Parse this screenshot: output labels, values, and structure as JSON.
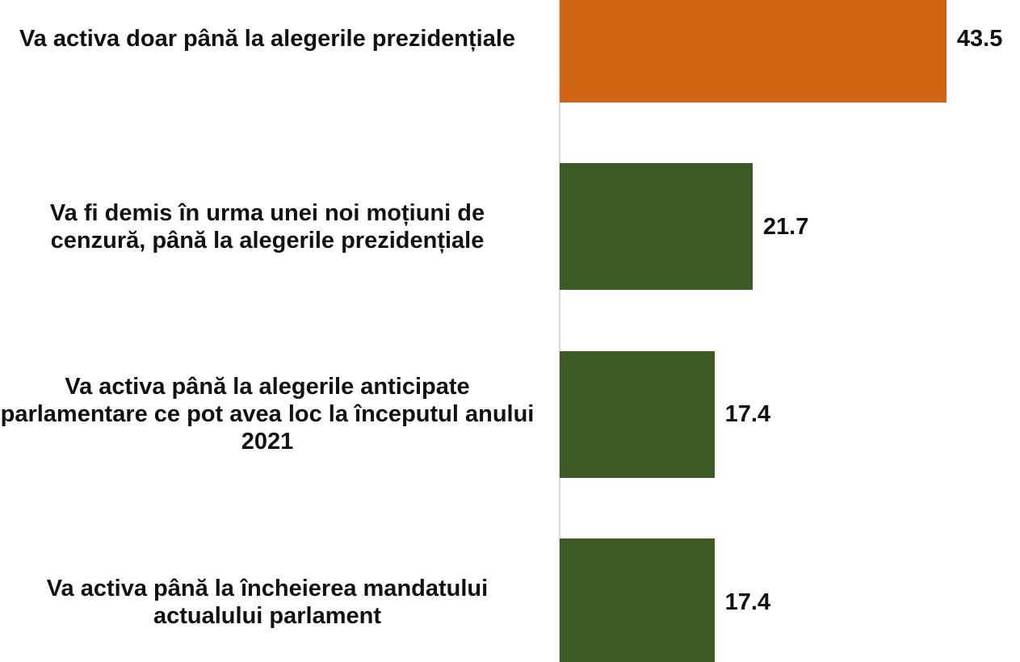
{
  "chart_data": {
    "type": "bar",
    "orientation": "horizontal",
    "categories": [
      "Va activa doar până la alegerile prezidențiale",
      "Va fi demis în urma unei noi moțiuni de cenzură, până la alegerile prezidențiale",
      "Va activa până la alegerile anticipate parlamentare ce pot avea loc la începutul anului 2021",
      "Va activa până la încheierea mandatului actualului parlament"
    ],
    "values": [
      43.5,
      21.7,
      17.4,
      17.4
    ],
    "colors": [
      "#d06614",
      "#3b5a24",
      "#3b5a24",
      "#3b5a24"
    ]
  }
}
